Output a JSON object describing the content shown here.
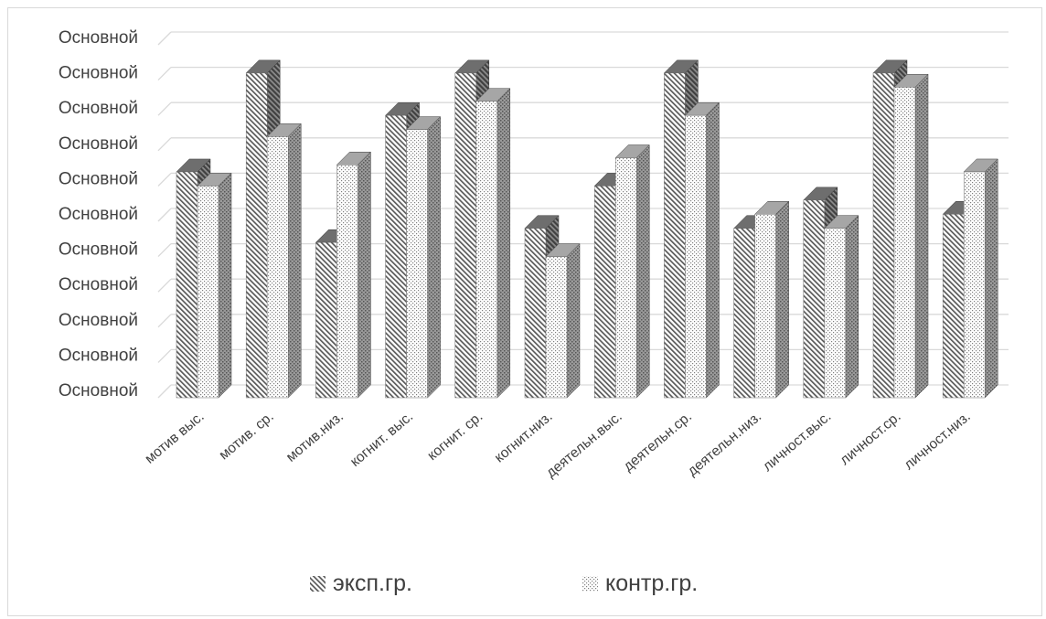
{
  "chart_data": {
    "type": "bar",
    "title": "",
    "xlabel": "",
    "ylabel": "",
    "y_tick_labels": [
      "Основной",
      "Основной",
      "Основной",
      "Основной",
      "Основной",
      "Основной",
      "Основной",
      "Основной",
      "Основной",
      "Основной",
      "Основной"
    ],
    "ylim": [
      0,
      10
    ],
    "grid": true,
    "legend_position": "bottom",
    "categories": [
      "мотив выс.",
      "мотив. ср.",
      "мотив.низ.",
      "когнит. выс.",
      "когнит. ср.",
      "когнит.низ.",
      "деятельн.выс.",
      "деятельн.ср.",
      "деятельн.низ.",
      "личност.выс.",
      "личност.ср.",
      "личност.низ."
    ],
    "series": [
      {
        "name": "эксп.гр.",
        "pattern": "diagonal-hatch",
        "color": "#595959",
        "values": [
          6.4,
          9.2,
          4.4,
          8.0,
          9.2,
          4.8,
          6.0,
          9.2,
          4.8,
          5.6,
          9.2,
          5.2
        ]
      },
      {
        "name": "контр.гр.",
        "pattern": "dots",
        "color": "#7f7f7f",
        "values": [
          6.0,
          7.4,
          6.6,
          7.6,
          8.4,
          4.0,
          6.8,
          8.0,
          5.2,
          4.8,
          8.8,
          6.4
        ]
      }
    ]
  }
}
